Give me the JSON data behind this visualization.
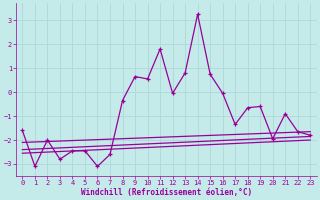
{
  "xlabel": "Windchill (Refroidissement éolien,°C)",
  "xlim": [
    -0.5,
    23.5
  ],
  "ylim": [
    -3.5,
    3.7
  ],
  "xticks": [
    0,
    1,
    2,
    3,
    4,
    5,
    6,
    7,
    8,
    9,
    10,
    11,
    12,
    13,
    14,
    15,
    16,
    17,
    18,
    19,
    20,
    21,
    22,
    23
  ],
  "yticks": [
    -3,
    -2,
    -1,
    0,
    1,
    2,
    3
  ],
  "bg_color": "#c5eaea",
  "line_color": "#990099",
  "grid_color": "#b0d8d8",
  "data_x": [
    0,
    1,
    2,
    3,
    4,
    5,
    6,
    7,
    8,
    9,
    10,
    11,
    12,
    13,
    14,
    15,
    16,
    17,
    18,
    19,
    20,
    21,
    22,
    23
  ],
  "data_y": [
    -1.6,
    -3.1,
    -2.0,
    -2.8,
    -2.45,
    -2.45,
    -3.1,
    -2.6,
    -0.35,
    0.65,
    0.55,
    1.8,
    -0.05,
    0.8,
    3.25,
    0.75,
    -0.05,
    -1.35,
    -0.65,
    -0.6,
    -1.95,
    -0.9,
    -1.65,
    -1.8
  ],
  "trend1_x": [
    0,
    23
  ],
  "trend1_y": [
    -2.1,
    -1.65
  ],
  "trend2_x": [
    0,
    23
  ],
  "trend2_y": [
    -2.4,
    -1.85
  ],
  "trend3_x": [
    0,
    23
  ],
  "trend3_y": [
    -2.55,
    -2.0
  ]
}
